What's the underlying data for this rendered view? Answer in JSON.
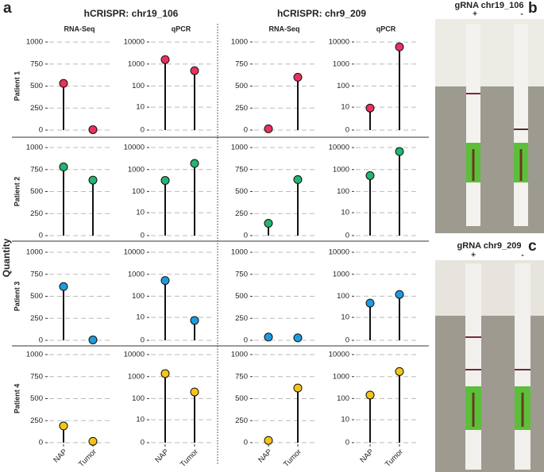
{
  "panel_labels": [
    "a",
    "b",
    "c"
  ],
  "group_titles": [
    "hCRISPR: chr19_106",
    "hCRISPR: chr9_209"
  ],
  "column_titles": [
    "RNA-Seq",
    "qPCR",
    "RNA-Seq",
    "qPCR"
  ],
  "row_titles": [
    "Patient 1",
    "Patient 2",
    "Patient 3",
    "Patient 4"
  ],
  "y_label": "Quantity",
  "photos": [
    {
      "title": "gRNA chr19_106",
      "lanes": [
        "+",
        "-"
      ]
    },
    {
      "title": "gRNA chr9_209",
      "lanes": [
        "+",
        "-"
      ]
    }
  ],
  "chart_data": [
    {
      "type": "lollipop",
      "color": "#e8325f",
      "values": [
        530,
        5
      ],
      "ylim": [
        0,
        1000
      ],
      "yticks": [
        0,
        250,
        500,
        750,
        1000
      ],
      "grid": true
    },
    {
      "type": "lollipop",
      "color": "#e8325f",
      "values": [
        1600,
        500
      ],
      "ylim": [
        0,
        10000
      ],
      "yticks": [
        0,
        10,
        100,
        1000,
        10000
      ],
      "yscale": "log1p",
      "grid": true
    },
    {
      "type": "lollipop",
      "color": "#e8325f",
      "values": [
        15,
        600
      ],
      "ylim": [
        0,
        1000
      ],
      "yticks": [
        0,
        250,
        500,
        750,
        1000
      ],
      "grid": true
    },
    {
      "type": "lollipop",
      "color": "#e8325f",
      "values": [
        9,
        6000
      ],
      "ylim": [
        0,
        10000
      ],
      "yticks": [
        0,
        10,
        100,
        1000,
        10000
      ],
      "yscale": "log1p",
      "grid": true
    },
    {
      "type": "lollipop",
      "color": "#22b573",
      "values": [
        780,
        630
      ],
      "ylim": [
        0,
        1000
      ],
      "yticks": [
        0,
        250,
        500,
        750,
        1000
      ],
      "grid": true
    },
    {
      "type": "lollipop",
      "color": "#22b573",
      "values": [
        320,
        1900
      ],
      "ylim": [
        0,
        10000
      ],
      "yticks": [
        0,
        10,
        100,
        1000,
        10000
      ],
      "yscale": "log1p",
      "grid": true
    },
    {
      "type": "lollipop",
      "color": "#22b573",
      "values": [
        140,
        636
      ],
      "ylim": [
        0,
        1000
      ],
      "yticks": [
        0,
        250,
        500,
        750,
        1000
      ],
      "grid": true
    },
    {
      "type": "lollipop",
      "color": "#22b573",
      "values": [
        530,
        6600
      ],
      "ylim": [
        0,
        10000
      ],
      "yticks": [
        0,
        10,
        100,
        1000,
        10000
      ],
      "yscale": "log1p",
      "grid": true
    },
    {
      "type": "lollipop",
      "color": "#1e9be0",
      "values": [
        610,
        5
      ],
      "ylim": [
        0,
        1000
      ],
      "yticks": [
        0,
        250,
        500,
        750,
        1000
      ],
      "grid": true
    },
    {
      "type": "lollipop",
      "color": "#1e9be0",
      "values": [
        520,
        7
      ],
      "ylim": [
        0,
        10000
      ],
      "yticks": [
        0,
        10,
        100,
        1000,
        10000
      ],
      "yscale": "log1p",
      "grid": true
    },
    {
      "type": "lollipop",
      "color": "#1e9be0",
      "values": [
        37,
        28
      ],
      "ylim": [
        0,
        1000
      ],
      "yticks": [
        0,
        250,
        500,
        750,
        1000
      ],
      "grid": true
    },
    {
      "type": "lollipop",
      "color": "#1e9be0",
      "values": [
        48,
        120
      ],
      "ylim": [
        0,
        10000
      ],
      "yticks": [
        0,
        10,
        100,
        1000,
        10000
      ],
      "yscale": "log1p",
      "grid": true
    },
    {
      "type": "lollipop",
      "color": "#f5c41a",
      "categories": [
        "NAP",
        "Tumor"
      ],
      "values": [
        190,
        15
      ],
      "ylim": [
        0,
        1000
      ],
      "yticks": [
        0,
        250,
        500,
        750,
        1000
      ],
      "grid": true
    },
    {
      "type": "lollipop",
      "color": "#f5c41a",
      "categories": [
        "NAP",
        "Tumor"
      ],
      "values": [
        1370,
        200
      ],
      "ylim": [
        0,
        10000
      ],
      "yticks": [
        0,
        10,
        100,
        1000,
        10000
      ],
      "yscale": "log1p",
      "grid": true
    },
    {
      "type": "lollipop",
      "color": "#f5c41a",
      "categories": [
        "NAP",
        "Tumor"
      ],
      "values": [
        25,
        621
      ],
      "ylim": [
        0,
        1000
      ],
      "yticks": [
        0,
        250,
        500,
        750,
        1000
      ],
      "grid": true
    },
    {
      "type": "lollipop",
      "color": "#f5c41a",
      "categories": [
        "NAP",
        "Tumor"
      ],
      "values": [
        145,
        1700
      ],
      "ylim": [
        0,
        10000
      ],
      "yticks": [
        0,
        10,
        100,
        1000,
        10000
      ],
      "yscale": "log1p",
      "grid": true
    }
  ]
}
